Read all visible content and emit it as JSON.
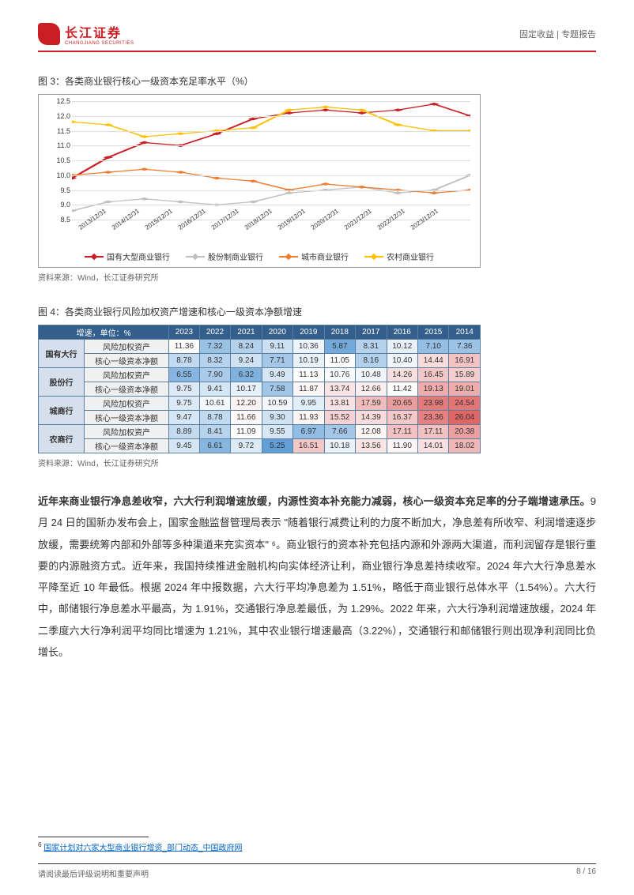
{
  "header": {
    "logo_cn": "长江证券",
    "logo_en": "CHANGJIANG SECURITIES",
    "right": "固定收益 | 专题报告"
  },
  "chart3": {
    "title": "图 3：各类商业银行核心一级资本充足率水平（%）",
    "ytick_labels": [
      "8.5",
      "9.0",
      "9.5",
      "10.0",
      "10.5",
      "11.0",
      "11.5",
      "12.0",
      "12.5"
    ],
    "ytick_values": [
      8.5,
      9.0,
      9.5,
      10.0,
      10.5,
      11.0,
      11.5,
      12.0,
      12.5
    ],
    "ymin": 8.5,
    "ymax": 12.5,
    "x_labels": [
      "2013/12/31",
      "2014/12/31",
      "2015/12/31",
      "2016/12/31",
      "2017/12/31",
      "2018/12/31",
      "2019/12/31",
      "2020/12/31",
      "2021/12/31",
      "2022/12/31",
      "2023/12/31",
      ""
    ],
    "series": [
      {
        "name": "国有大型商业银行",
        "color": "#c91f24",
        "marker": "diamond",
        "values": [
          9.9,
          10.6,
          11.1,
          11.0,
          11.4,
          11.9,
          12.1,
          12.2,
          12.1,
          12.2,
          12.4,
          12.0
        ]
      },
      {
        "name": "股份制商业银行",
        "color": "#bfbfbf",
        "marker": "diamond",
        "values": [
          8.8,
          9.1,
          9.2,
          9.1,
          9.0,
          9.1,
          9.4,
          9.5,
          9.6,
          9.4,
          9.5,
          10.0
        ]
      },
      {
        "name": "城市商业银行",
        "color": "#ed7d31",
        "marker": "diamond",
        "values": [
          10.0,
          10.1,
          10.2,
          10.1,
          9.9,
          9.8,
          9.5,
          9.7,
          9.6,
          9.5,
          9.4,
          9.5
        ]
      },
      {
        "name": "农村商业银行",
        "color": "#ffc000",
        "marker": "diamond",
        "values": [
          11.8,
          11.7,
          11.3,
          11.4,
          11.5,
          11.6,
          12.2,
          12.3,
          12.2,
          11.7,
          11.5,
          11.5
        ]
      }
    ],
    "source": "资料来源：Wind，长江证券研究所"
  },
  "table4": {
    "title": "图 4：各类商业银行风险加权资产增速和核心一级资本净额增速",
    "header_label": "增速，单位：%",
    "years": [
      "2023",
      "2022",
      "2021",
      "2020",
      "2019",
      "2018",
      "2017",
      "2016",
      "2015",
      "2014"
    ],
    "groups": [
      {
        "name": "国有大行",
        "rows": [
          {
            "metric": "风险加权资产",
            "vals": [
              11.36,
              7.32,
              8.24,
              9.11,
              10.36,
              5.87,
              8.31,
              10.12,
              7.1,
              7.36
            ]
          },
          {
            "metric": "核心一级资本净额",
            "vals": [
              8.78,
              8.32,
              9.24,
              7.71,
              10.19,
              11.05,
              8.16,
              10.4,
              14.44,
              16.91
            ]
          }
        ]
      },
      {
        "name": "股份行",
        "rows": [
          {
            "metric": "风险加权资产",
            "vals": [
              6.55,
              7.9,
              6.32,
              9.49,
              11.13,
              10.76,
              10.48,
              14.26,
              16.45,
              15.89
            ]
          },
          {
            "metric": "核心一级资本净额",
            "vals": [
              9.75,
              9.41,
              10.17,
              7.58,
              11.87,
              13.74,
              12.66,
              11.42,
              19.13,
              19.01
            ]
          }
        ]
      },
      {
        "name": "城商行",
        "rows": [
          {
            "metric": "风险加权资产",
            "vals": [
              9.75,
              10.61,
              12.2,
              10.59,
              9.95,
              13.81,
              17.59,
              20.65,
              23.98,
              24.54
            ]
          },
          {
            "metric": "核心一级资本净额",
            "vals": [
              9.47,
              8.78,
              11.66,
              9.3,
              11.93,
              15.52,
              14.39,
              16.37,
              23.36,
              26.04
            ]
          }
        ]
      },
      {
        "name": "农商行",
        "rows": [
          {
            "metric": "风险加权资产",
            "vals": [
              8.89,
              8.41,
              11.09,
              9.55,
              6.97,
              7.66,
              12.08,
              17.11,
              17.11,
              20.38
            ]
          },
          {
            "metric": "核心一级资本净额",
            "vals": [
              9.45,
              6.61,
              9.72,
              5.25,
              16.51,
              10.18,
              13.56,
              11.9,
              14.01,
              18.02
            ]
          }
        ]
      }
    ],
    "source": "资料来源：Wind，长江证券研究所",
    "color_low": "#5b9bd5",
    "color_mid": "#ffffff",
    "color_high": "#e06666",
    "val_min": 5.0,
    "val_mid": 11.0,
    "val_max": 26.0
  },
  "body": {
    "bold": "近年来商业银行净息差收窄，六大行利润增速放缓，内源性资本补充能力减弱，核心一级资本充足率的分子端增速承压。",
    "text": "9 月 24 日的国新办发布会上，国家金融监督管理局表示 \"随着银行减费让利的力度不断加大，净息差有所收窄、利润增速逐步放缓，需要统筹内部和外部等多种渠道来充实资本\" ⁶。商业银行的资本补充包括内源和外源两大渠道，而利润留存是银行重要的内源融资方式。近年来，我国持续推进金融机构向实体经济让利，商业银行净息差持续收窄。2024 年六大行净息差水平降至近 10 年最低。根据 2024 年中报数据，六大行平均净息差为 1.51%，略低于商业银行总体水平（1.54%）。六大行中，邮储银行净息差水平最高，为 1.91%，交通银行净息差最低，为 1.29%。2022 年来，六大行净利润增速放缓，2024 年二季度六大行净利润平均同比增速为 1.21%，其中农业银行增速最高（3.22%），交通银行和邮储银行则出现净利润同比负增长。"
  },
  "footnote": {
    "num": "6",
    "text": "国家计划对六家大型商业银行增资_部门动态_中国政府网"
  },
  "footer": {
    "left": "请阅读最后评级说明和重要声明",
    "right": "8 / 16"
  }
}
